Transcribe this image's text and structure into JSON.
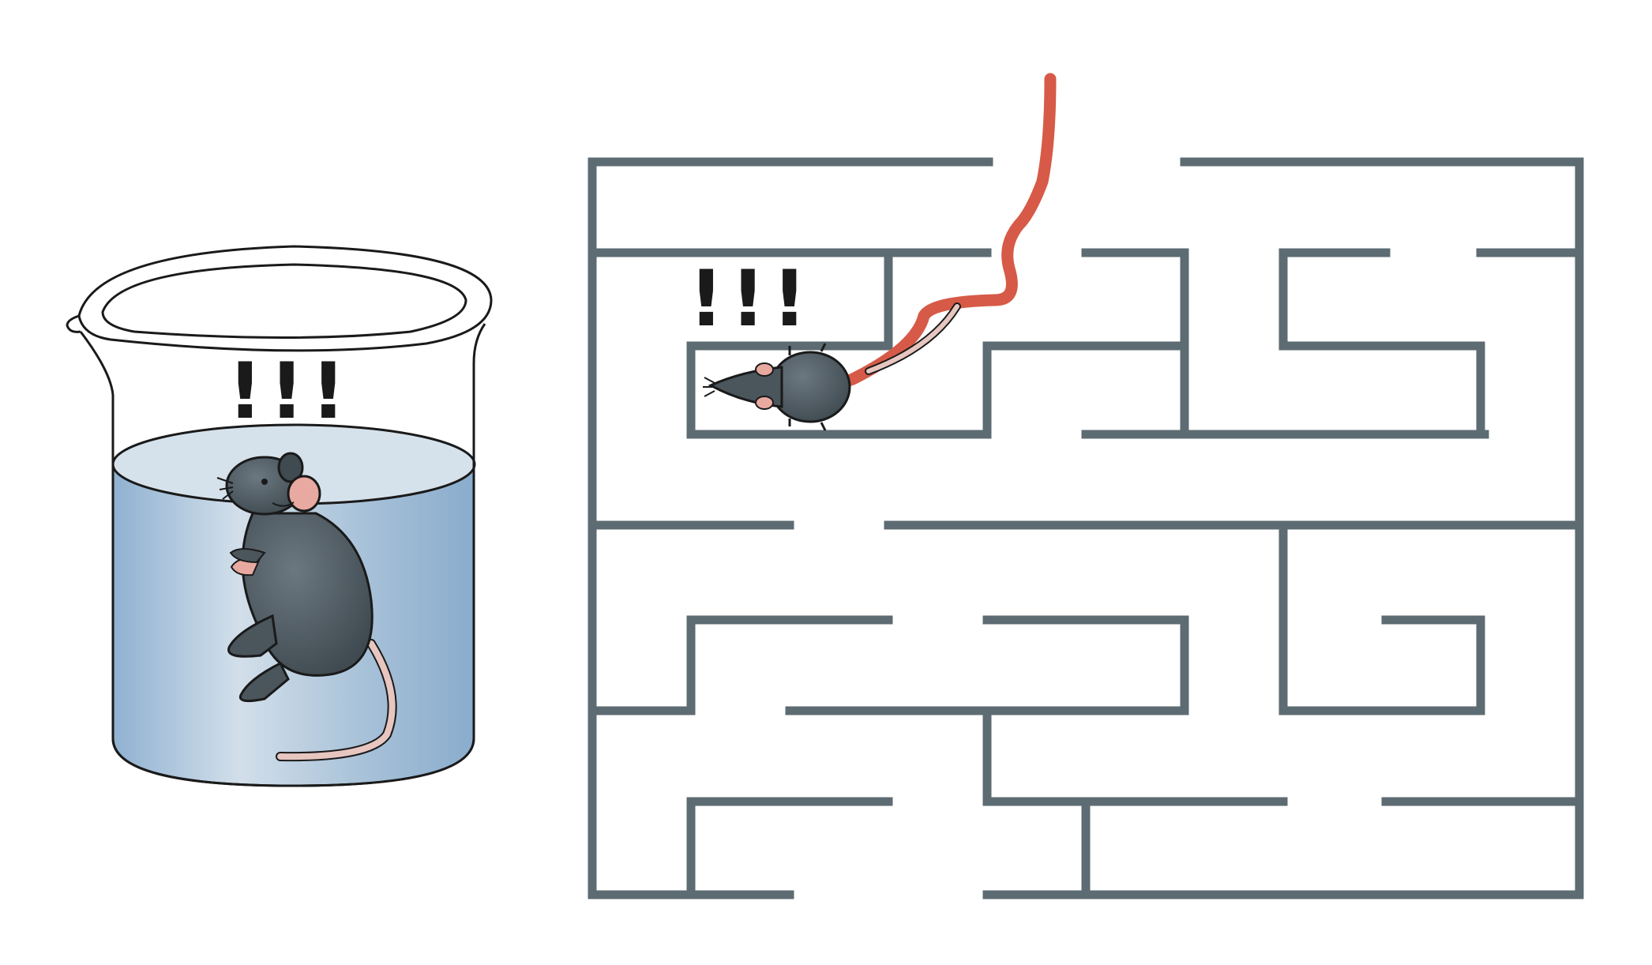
{
  "beaker_panel": {
    "alert_text": "!!!"
  },
  "maze_panel": {
    "alert_text": "!!!"
  },
  "colors": {
    "maze_wall": "#5d6b72",
    "mouse_body": "#4a555c",
    "mouse_ear": "#e8a9a0",
    "tail": "#e7c6c0",
    "trace_path": "#d65a47",
    "water": "#a6bfd6",
    "water_surface": "#d3e0e9",
    "outline": "#1a1a1a"
  }
}
